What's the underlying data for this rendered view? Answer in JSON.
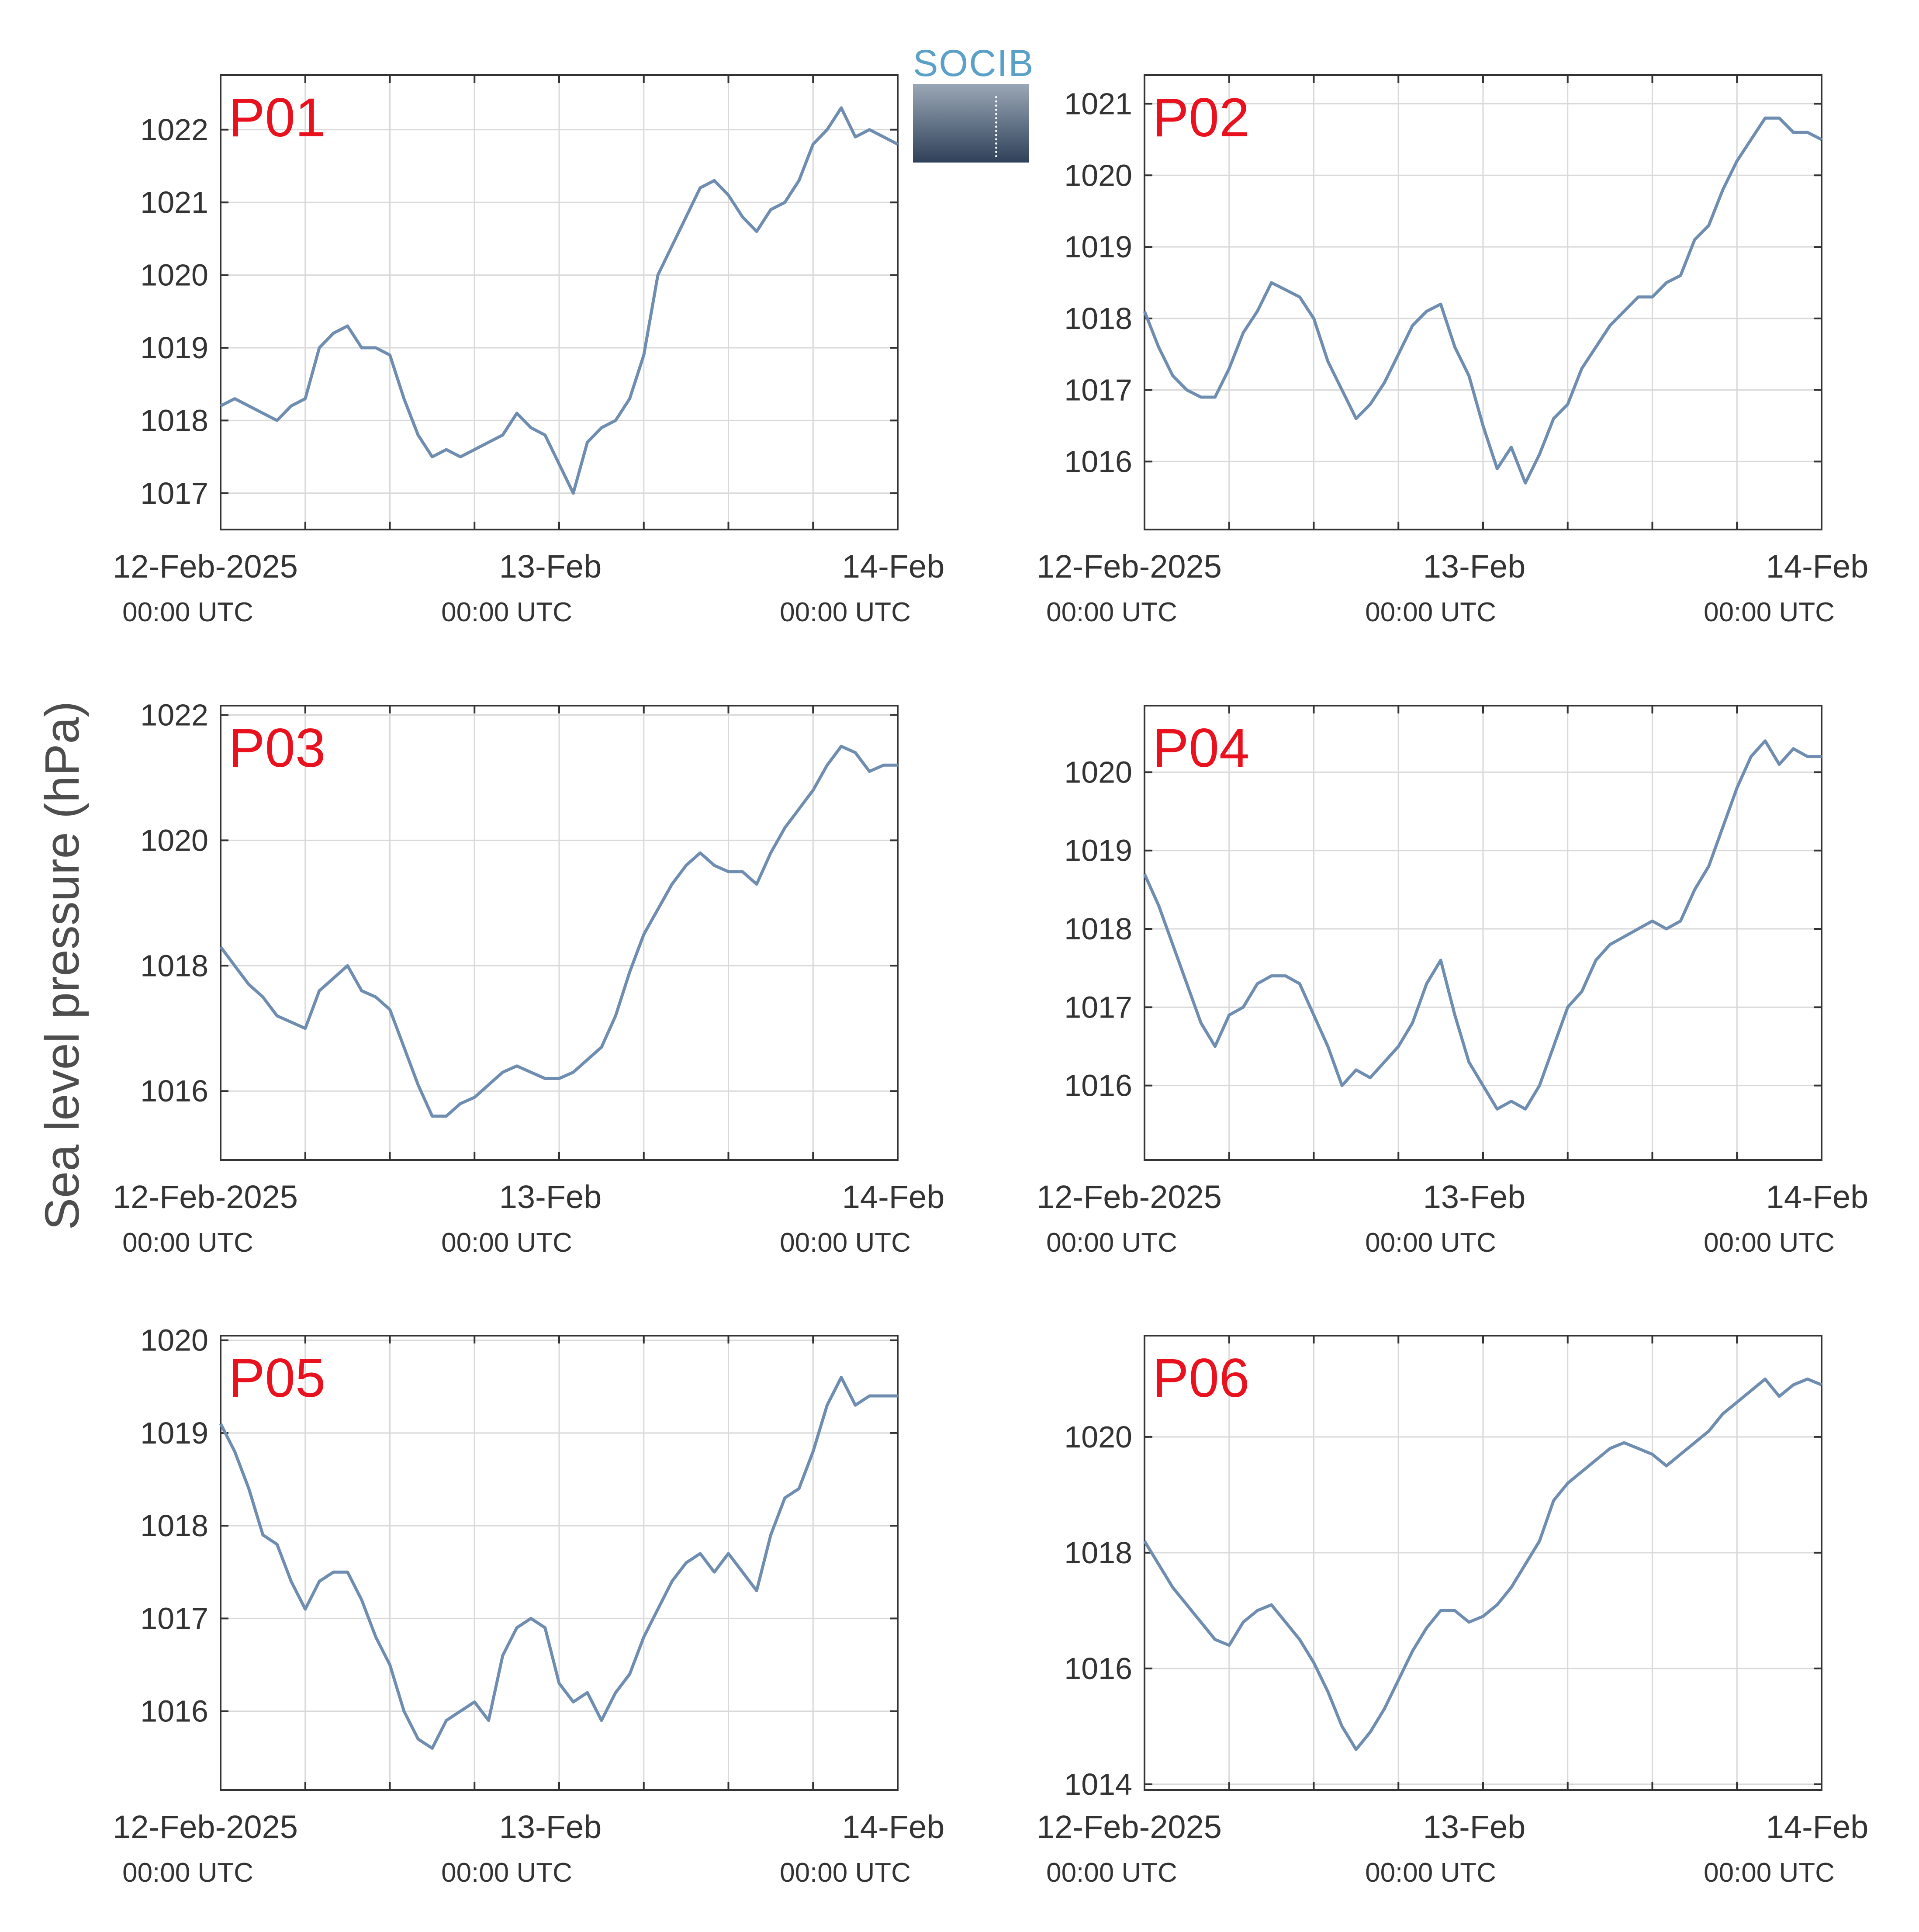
{
  "y_axis_label": "Sea level pressure (hPa)",
  "logo": {
    "text": "SOCIB"
  },
  "colors": {
    "line": "#6f8db0",
    "panel_label": "#e8111d",
    "grid": "#d9d9d9",
    "axis": "#333333"
  },
  "x_tick_labels": {
    "dates": [
      "12-Feb-2025",
      "13-Feb",
      "14-Feb"
    ],
    "times": [
      "00:00 UTC",
      "00:00 UTC",
      "00:00 UTC"
    ]
  },
  "chart_data": [
    {
      "type": "line",
      "title": "P01",
      "xlim": [
        0,
        48
      ],
      "ylim": [
        1016.5,
        1022.75
      ],
      "yticks": [
        1017,
        1018,
        1019,
        1020,
        1021,
        1022
      ],
      "series": [
        {
          "x": [
            0,
            1,
            2,
            3,
            4,
            5,
            6,
            7,
            8,
            9,
            10,
            11,
            12,
            13,
            14,
            15,
            16,
            17,
            18,
            19,
            20,
            21,
            22,
            23,
            24,
            25,
            26,
            27,
            28,
            29,
            30,
            31,
            32,
            33,
            34,
            35,
            36,
            37,
            38,
            39,
            40,
            41,
            42,
            43,
            44,
            45,
            46,
            47,
            48
          ],
          "y": [
            1018.2,
            1018.3,
            1018.2,
            1018.1,
            1018.0,
            1018.2,
            1018.3,
            1019.0,
            1019.2,
            1019.3,
            1019.0,
            1019.0,
            1018.9,
            1018.3,
            1017.8,
            1017.5,
            1017.6,
            1017.5,
            1017.6,
            1017.7,
            1017.8,
            1018.1,
            1017.9,
            1017.8,
            1017.4,
            1017.0,
            1017.7,
            1017.9,
            1018.0,
            1018.3,
            1018.9,
            1020.0,
            1020.4,
            1020.8,
            1021.2,
            1021.3,
            1021.1,
            1020.8,
            1020.6,
            1020.9,
            1021.0,
            1021.3,
            1021.8,
            1022.0,
            1022.3,
            1021.9,
            1022.0,
            1021.9,
            1021.8
          ]
        }
      ]
    },
    {
      "type": "line",
      "title": "P02",
      "xlim": [
        0,
        48
      ],
      "ylim": [
        1015.05,
        1021.4
      ],
      "yticks": [
        1016,
        1017,
        1018,
        1019,
        1020,
        1021
      ],
      "series": [
        {
          "x": [
            0,
            1,
            2,
            3,
            4,
            5,
            6,
            7,
            8,
            9,
            10,
            11,
            12,
            13,
            14,
            15,
            16,
            17,
            18,
            19,
            20,
            21,
            22,
            23,
            24,
            25,
            26,
            27,
            28,
            29,
            30,
            31,
            32,
            33,
            34,
            35,
            36,
            37,
            38,
            39,
            40,
            41,
            42,
            43,
            44,
            45,
            46,
            47,
            48
          ],
          "y": [
            1018.1,
            1017.6,
            1017.2,
            1017.0,
            1016.9,
            1016.9,
            1017.3,
            1017.8,
            1018.1,
            1018.5,
            1018.4,
            1018.3,
            1018.0,
            1017.4,
            1017.0,
            1016.6,
            1016.8,
            1017.1,
            1017.5,
            1017.9,
            1018.1,
            1018.2,
            1017.6,
            1017.2,
            1016.5,
            1015.9,
            1016.2,
            1015.7,
            1016.1,
            1016.6,
            1016.8,
            1017.3,
            1017.6,
            1017.9,
            1018.1,
            1018.3,
            1018.3,
            1018.5,
            1018.6,
            1019.1,
            1019.3,
            1019.8,
            1020.2,
            1020.5,
            1020.8,
            1020.8,
            1020.6,
            1020.6,
            1020.5
          ]
        }
      ]
    },
    {
      "type": "line",
      "title": "P03",
      "xlim": [
        0,
        48
      ],
      "ylim": [
        1014.9,
        1022.15
      ],
      "yticks": [
        1016,
        1018,
        1020,
        1022
      ],
      "series": [
        {
          "x": [
            0,
            1,
            2,
            3,
            4,
            5,
            6,
            7,
            8,
            9,
            10,
            11,
            12,
            13,
            14,
            15,
            16,
            17,
            18,
            19,
            20,
            21,
            22,
            23,
            24,
            25,
            26,
            27,
            28,
            29,
            30,
            31,
            32,
            33,
            34,
            35,
            36,
            37,
            38,
            39,
            40,
            41,
            42,
            43,
            44,
            45,
            46,
            47,
            48
          ],
          "y": [
            1018.3,
            1018.0,
            1017.7,
            1017.5,
            1017.2,
            1017.1,
            1017.0,
            1017.6,
            1017.8,
            1018.0,
            1017.6,
            1017.5,
            1017.3,
            1016.7,
            1016.1,
            1015.6,
            1015.6,
            1015.8,
            1015.9,
            1016.1,
            1016.3,
            1016.4,
            1016.3,
            1016.2,
            1016.2,
            1016.3,
            1016.5,
            1016.7,
            1017.2,
            1017.9,
            1018.5,
            1018.9,
            1019.3,
            1019.6,
            1019.8,
            1019.6,
            1019.5,
            1019.5,
            1019.3,
            1019.8,
            1020.2,
            1020.5,
            1020.8,
            1021.2,
            1021.5,
            1021.4,
            1021.1,
            1021.2,
            1021.2
          ]
        }
      ]
    },
    {
      "type": "line",
      "title": "P04",
      "xlim": [
        0,
        48
      ],
      "ylim": [
        1015.05,
        1020.85
      ],
      "yticks": [
        1016,
        1017,
        1018,
        1019,
        1020
      ],
      "series": [
        {
          "x": [
            0,
            1,
            2,
            3,
            4,
            5,
            6,
            7,
            8,
            9,
            10,
            11,
            12,
            13,
            14,
            15,
            16,
            17,
            18,
            19,
            20,
            21,
            22,
            23,
            24,
            25,
            26,
            27,
            28,
            29,
            30,
            31,
            32,
            33,
            34,
            35,
            36,
            37,
            38,
            39,
            40,
            41,
            42,
            43,
            44,
            45,
            46,
            47,
            48
          ],
          "y": [
            1018.7,
            1018.3,
            1017.8,
            1017.3,
            1016.8,
            1016.5,
            1016.9,
            1017.0,
            1017.3,
            1017.4,
            1017.4,
            1017.3,
            1016.9,
            1016.5,
            1016.0,
            1016.2,
            1016.1,
            1016.3,
            1016.5,
            1016.8,
            1017.3,
            1017.6,
            1016.9,
            1016.3,
            1016.0,
            1015.7,
            1015.8,
            1015.7,
            1016.0,
            1016.5,
            1017.0,
            1017.2,
            1017.6,
            1017.8,
            1017.9,
            1018.0,
            1018.1,
            1018.0,
            1018.1,
            1018.5,
            1018.8,
            1019.3,
            1019.8,
            1020.2,
            1020.4,
            1020.1,
            1020.3,
            1020.2,
            1020.2
          ]
        }
      ]
    },
    {
      "type": "line",
      "title": "P05",
      "xlim": [
        0,
        48
      ],
      "ylim": [
        1015.15,
        1020.05
      ],
      "yticks": [
        1016,
        1017,
        1018,
        1019,
        1020
      ],
      "series": [
        {
          "x": [
            0,
            1,
            2,
            3,
            4,
            5,
            6,
            7,
            8,
            9,
            10,
            11,
            12,
            13,
            14,
            15,
            16,
            17,
            18,
            19,
            20,
            21,
            22,
            23,
            24,
            25,
            26,
            27,
            28,
            29,
            30,
            31,
            32,
            33,
            34,
            35,
            36,
            37,
            38,
            39,
            40,
            41,
            42,
            43,
            44,
            45,
            46,
            47,
            48
          ],
          "y": [
            1019.1,
            1018.8,
            1018.4,
            1017.9,
            1017.8,
            1017.4,
            1017.1,
            1017.4,
            1017.5,
            1017.5,
            1017.2,
            1016.8,
            1016.5,
            1016.0,
            1015.7,
            1015.6,
            1015.9,
            1016.0,
            1016.1,
            1015.9,
            1016.6,
            1016.9,
            1017.0,
            1016.9,
            1016.3,
            1016.1,
            1016.2,
            1015.9,
            1016.2,
            1016.4,
            1016.8,
            1017.1,
            1017.4,
            1017.6,
            1017.7,
            1017.5,
            1017.7,
            1017.5,
            1017.3,
            1017.9,
            1018.3,
            1018.4,
            1018.8,
            1019.3,
            1019.6,
            1019.3,
            1019.4,
            1019.4,
            1019.4
          ]
        }
      ]
    },
    {
      "type": "line",
      "title": "P06",
      "xlim": [
        0,
        48
      ],
      "ylim": [
        1013.9,
        1021.75
      ],
      "yticks": [
        1014,
        1016,
        1018,
        1020
      ],
      "series": [
        {
          "x": [
            0,
            1,
            2,
            3,
            4,
            5,
            6,
            7,
            8,
            9,
            10,
            11,
            12,
            13,
            14,
            15,
            16,
            17,
            18,
            19,
            20,
            21,
            22,
            23,
            24,
            25,
            26,
            27,
            28,
            29,
            30,
            31,
            32,
            33,
            34,
            35,
            36,
            37,
            38,
            39,
            40,
            41,
            42,
            43,
            44,
            45,
            46,
            47,
            48
          ],
          "y": [
            1018.2,
            1017.8,
            1017.4,
            1017.1,
            1016.8,
            1016.5,
            1016.4,
            1016.8,
            1017.0,
            1017.1,
            1016.8,
            1016.5,
            1016.1,
            1015.6,
            1015.0,
            1014.6,
            1014.9,
            1015.3,
            1015.8,
            1016.3,
            1016.7,
            1017.0,
            1017.0,
            1016.8,
            1016.9,
            1017.1,
            1017.4,
            1017.8,
            1018.2,
            1018.9,
            1019.2,
            1019.4,
            1019.6,
            1019.8,
            1019.9,
            1019.8,
            1019.7,
            1019.5,
            1019.7,
            1019.9,
            1020.1,
            1020.4,
            1020.6,
            1020.8,
            1021.0,
            1020.7,
            1020.9,
            1021.0,
            1020.9
          ]
        }
      ]
    }
  ]
}
